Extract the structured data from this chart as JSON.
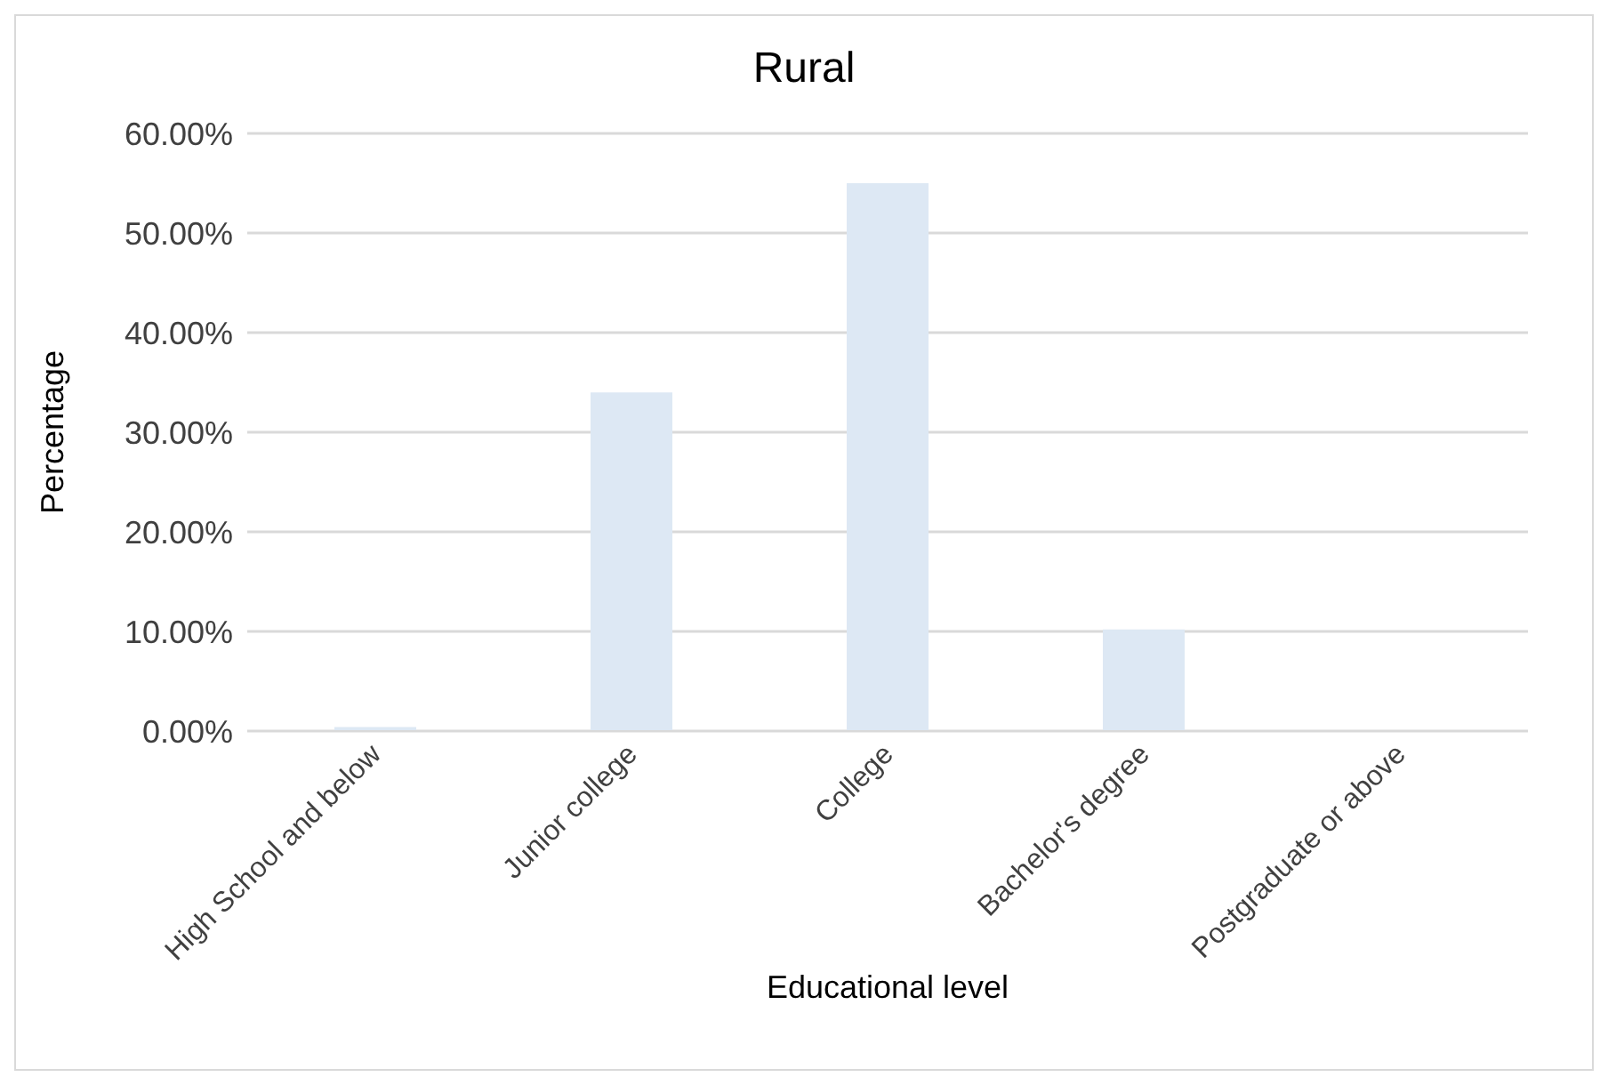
{
  "chart_data": {
    "type": "bar",
    "title": "Rural",
    "xlabel": "Educational level",
    "ylabel": "Percentage",
    "categories": [
      "High School and below",
      "Junior college",
      "College",
      "Bachelor's degree",
      "Postgraduate or above"
    ],
    "values": [
      0.4,
      34,
      55,
      10.2,
      0
    ],
    "color": "#dde8f4",
    "ylim": [
      0,
      60
    ],
    "yticks": [
      {
        "value": 0,
        "label": "0.00%"
      },
      {
        "value": 10,
        "label": "10.00%"
      },
      {
        "value": 20,
        "label": "20.00%"
      },
      {
        "value": 30,
        "label": "30.00%"
      },
      {
        "value": 40,
        "label": "40.00%"
      },
      {
        "value": 50,
        "label": "50.00%"
      },
      {
        "value": 60,
        "label": "60.00%"
      }
    ],
    "grid": "y"
  }
}
